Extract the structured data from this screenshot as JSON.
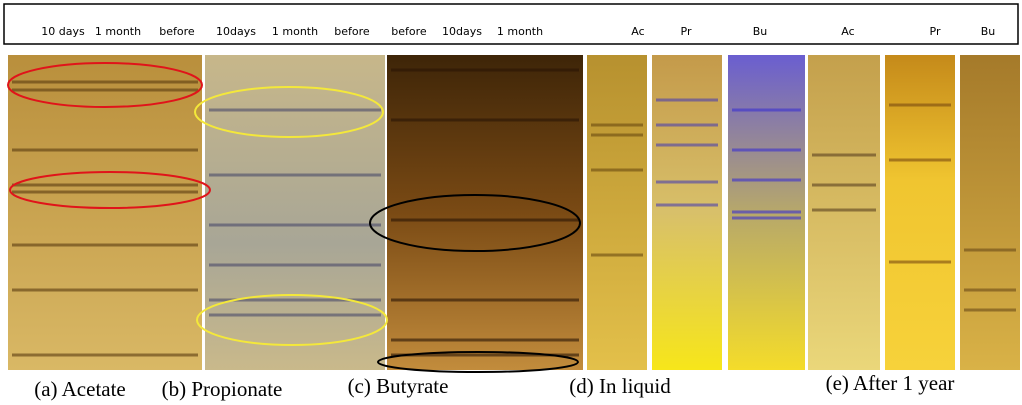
{
  "lane_labels": [
    "10 days",
    "1 month",
    "before",
    "10days",
    "1 month",
    "before",
    "before",
    "10days",
    "1 month",
    "Ac",
    "Pr",
    "Bu",
    "Ac",
    "Pr",
    "Bu"
  ],
  "panels": [
    {
      "caption": "(a) Acetate"
    },
    {
      "caption": "(b) Propionate"
    },
    {
      "caption": "(c) Butyrate"
    },
    {
      "caption": "(d) In liquid"
    },
    {
      "caption": "(e) After 1 year"
    }
  ]
}
